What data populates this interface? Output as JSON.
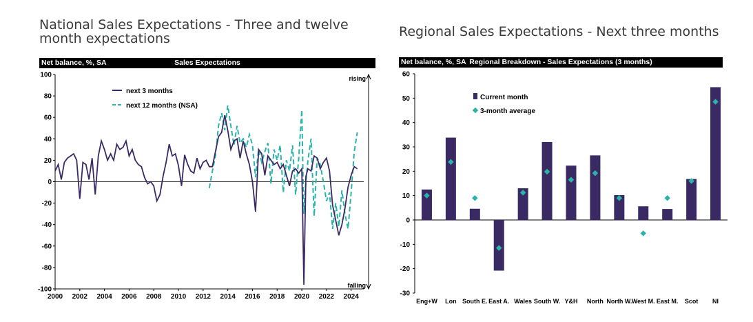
{
  "panels": {
    "left": {
      "title": "National Sales Expectations - Three and twelve month expectations",
      "header_left": "Net balance, %, SA",
      "header_center": "Sales Expectations"
    },
    "right": {
      "title": "Regional Sales Expectations - Next three months",
      "header_left": "Net balance, %, SA",
      "header_center": "Regional Breakdown - Sales Expectations (3 months)"
    }
  },
  "chart_data": [
    {
      "type": "line",
      "title": "Sales Expectations",
      "ylabel": "Net balance, %, SA",
      "ylim": [
        -100,
        100
      ],
      "yticks": [
        100,
        80,
        60,
        40,
        20,
        0,
        -20,
        -40,
        -60,
        -80,
        -100
      ],
      "xlim": [
        2000,
        2024.8
      ],
      "xticks": [
        "2000",
        "2002",
        "2004",
        "2006",
        "2008",
        "2010",
        "2012",
        "2014",
        "2016",
        "2018",
        "2020",
        "2022",
        "2024"
      ],
      "annotations": {
        "top": "rising",
        "bottom": "falling"
      },
      "legend_position": "top-left",
      "colors": {
        "next3": "#3a2a63",
        "next12": "#2bb3aa"
      },
      "series": [
        {
          "name": "next 3 months",
          "style": "solid",
          "x": [
            2000.0,
            2000.25,
            2000.5,
            2000.75,
            2001.0,
            2001.25,
            2001.5,
            2001.75,
            2002.0,
            2002.25,
            2002.5,
            2002.75,
            2003.0,
            2003.25,
            2003.5,
            2003.75,
            2004.0,
            2004.25,
            2004.5,
            2004.75,
            2005.0,
            2005.25,
            2005.5,
            2005.75,
            2006.0,
            2006.25,
            2006.5,
            2006.75,
            2007.0,
            2007.25,
            2007.5,
            2007.75,
            2008.0,
            2008.25,
            2008.5,
            2008.75,
            2009.0,
            2009.25,
            2009.5,
            2009.75,
            2010.0,
            2010.25,
            2010.5,
            2010.75,
            2011.0,
            2011.25,
            2011.5,
            2011.75,
            2012.0,
            2012.25,
            2012.5,
            2012.75,
            2013.0,
            2013.25,
            2013.5,
            2013.75,
            2014.0,
            2014.25,
            2014.5,
            2014.75,
            2015.0,
            2015.25,
            2015.5,
            2015.75,
            2016.0,
            2016.25,
            2016.5,
            2016.75,
            2017.0,
            2017.25,
            2017.5,
            2017.75,
            2018.0,
            2018.25,
            2018.5,
            2018.75,
            2019.0,
            2019.25,
            2019.5,
            2019.75,
            2020.0,
            2020.17,
            2020.33,
            2020.5,
            2020.75,
            2021.0,
            2021.25,
            2021.5,
            2021.75,
            2022.0,
            2022.25,
            2022.5,
            2022.75,
            2023.0,
            2023.25,
            2023.5,
            2023.75,
            2024.0,
            2024.25,
            2024.5
          ],
          "y": [
            10,
            16,
            2,
            18,
            22,
            24,
            26,
            20,
            -16,
            18,
            16,
            2,
            22,
            -12,
            24,
            38,
            30,
            20,
            26,
            20,
            35,
            30,
            32,
            38,
            24,
            30,
            20,
            16,
            14,
            4,
            -2,
            0,
            -4,
            -18,
            -12,
            5,
            18,
            35,
            24,
            26,
            15,
            -4,
            25,
            16,
            10,
            8,
            22,
            12,
            18,
            20,
            14,
            14,
            28,
            42,
            46,
            62,
            48,
            30,
            38,
            40,
            22,
            38,
            26,
            16,
            0,
            -28,
            30,
            26,
            6,
            24,
            20,
            16,
            18,
            12,
            16,
            6,
            -4,
            10,
            12,
            8,
            12,
            -96,
            5,
            12,
            10,
            24,
            22,
            12,
            18,
            22,
            10,
            -22,
            -36,
            -50,
            -40,
            -25,
            -5,
            6,
            14,
            12
          ]
        },
        {
          "name": "next 12 months (NSA)",
          "style": "dashed",
          "x": [
            2012.5,
            2012.75,
            2013.0,
            2013.25,
            2013.5,
            2013.75,
            2014.0,
            2014.25,
            2014.5,
            2014.75,
            2015.0,
            2015.25,
            2015.5,
            2015.75,
            2016.0,
            2016.25,
            2016.5,
            2016.75,
            2017.0,
            2017.25,
            2017.5,
            2017.75,
            2018.0,
            2018.25,
            2018.5,
            2018.75,
            2019.0,
            2019.25,
            2019.5,
            2019.75,
            2020.0,
            2020.15,
            2020.3,
            2020.5,
            2020.75,
            2021.0,
            2021.25,
            2021.5,
            2021.75,
            2022.0,
            2022.25,
            2022.5,
            2022.75,
            2023.0,
            2023.25,
            2023.5,
            2023.75,
            2024.0,
            2024.25,
            2024.5
          ],
          "y": [
            -6,
            10,
            24,
            52,
            64,
            48,
            71,
            52,
            34,
            52,
            36,
            40,
            32,
            44,
            34,
            4,
            30,
            18,
            28,
            36,
            -2,
            30,
            20,
            34,
            -10,
            20,
            10,
            34,
            -12,
            22,
            67,
            -30,
            -5,
            20,
            40,
            -32,
            22,
            16,
            0,
            -18,
            -10,
            -44,
            -20,
            -42,
            -8,
            -30,
            -44,
            -10,
            28,
            46
          ]
        }
      ]
    },
    {
      "type": "bar",
      "title": "Regional Breakdown - Sales Expectations (3 months)",
      "ylabel": "Net balance, %, SA",
      "ylim": [
        -30,
        60
      ],
      "yticks": [
        60,
        50,
        40,
        30,
        20,
        10,
        0,
        -10,
        -20,
        -30
      ],
      "categories": [
        "Eng+W",
        "Lon",
        "South E.",
        "East A.",
        "Wales",
        "South W.",
        "Y&H",
        "North",
        "North W.",
        "West M.",
        "East M.",
        "Scot",
        "NI"
      ],
      "legend_position": "top-left",
      "colors": {
        "bars": "#3a2a63",
        "markers": "#2bb3aa"
      },
      "series": [
        {
          "name": "Current month",
          "kind": "bar",
          "values": [
            12.5,
            33.8,
            4.6,
            -20.8,
            13.0,
            32.0,
            22.3,
            26.5,
            10.2,
            5.6,
            4.5,
            16.8,
            54.5
          ]
        },
        {
          "name": "3-month average",
          "kind": "marker",
          "values": [
            10.0,
            23.8,
            9.0,
            -11.5,
            11.2,
            19.8,
            16.5,
            19.2,
            9.0,
            -5.5,
            9.0,
            16.0,
            48.5
          ]
        }
      ]
    }
  ]
}
